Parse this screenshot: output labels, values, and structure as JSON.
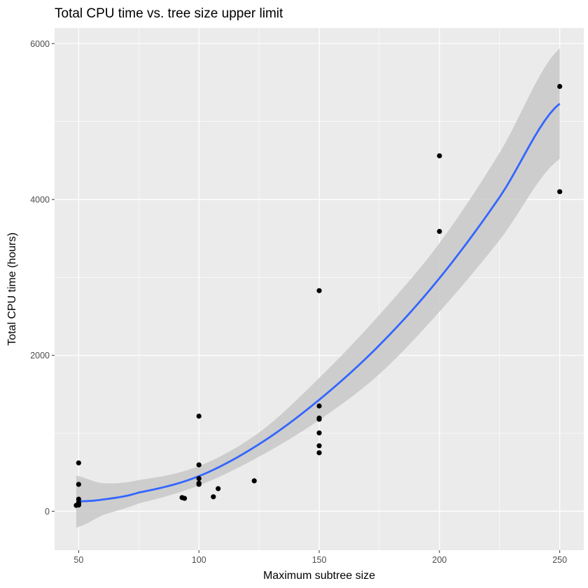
{
  "chart_data": {
    "type": "scatter",
    "title": "Total CPU time vs. tree size upper limit",
    "xlabel": "Maximum subtree size",
    "ylabel": "Total CPU time (hours)",
    "xlim": [
      40,
      260
    ],
    "ylim": [
      -500,
      6200
    ],
    "x_ticks": [
      50,
      100,
      150,
      200,
      250
    ],
    "x_minor_ticks": [
      75,
      125,
      175,
      225
    ],
    "y_ticks": [
      0,
      2000,
      4000,
      6000
    ],
    "y_minor_ticks": [
      1000,
      3000,
      5000
    ],
    "grid": true,
    "legend": "none",
    "colors": {
      "panel": "#ebebeb",
      "grid": "#ffffff",
      "points": "#000000",
      "fit_line": "#3366ff",
      "confidence_band": "#c8c8c8"
    },
    "points": [
      {
        "x": 49,
        "y": 75
      },
      {
        "x": 50,
        "y": 80
      },
      {
        "x": 50,
        "y": 95
      },
      {
        "x": 50,
        "y": 110
      },
      {
        "x": 50,
        "y": 155
      },
      {
        "x": 50,
        "y": 345
      },
      {
        "x": 50,
        "y": 620
      },
      {
        "x": 93,
        "y": 175
      },
      {
        "x": 94,
        "y": 165
      },
      {
        "x": 100,
        "y": 345
      },
      {
        "x": 100,
        "y": 360
      },
      {
        "x": 100,
        "y": 420
      },
      {
        "x": 100,
        "y": 595
      },
      {
        "x": 100,
        "y": 1220
      },
      {
        "x": 106,
        "y": 185
      },
      {
        "x": 108,
        "y": 290
      },
      {
        "x": 123,
        "y": 390
      },
      {
        "x": 150,
        "y": 750
      },
      {
        "x": 150,
        "y": 840
      },
      {
        "x": 150,
        "y": 1005
      },
      {
        "x": 150,
        "y": 1180
      },
      {
        "x": 150,
        "y": 1195
      },
      {
        "x": 150,
        "y": 1350
      },
      {
        "x": 150,
        "y": 2830
      },
      {
        "x": 200,
        "y": 3590
      },
      {
        "x": 200,
        "y": 4560
      },
      {
        "x": 250,
        "y": 4100
      },
      {
        "x": 250,
        "y": 5450
      }
    ],
    "fit": {
      "method": "quadratic smooth with confidence band",
      "x": [
        49,
        60,
        75,
        100,
        125,
        150,
        175,
        200,
        225,
        250
      ],
      "y": [
        125,
        150,
        240,
        450,
        860,
        1430,
        2130,
        2990,
        4030,
        5230
      ],
      "y_lower": [
        -210,
        -50,
        100,
        330,
        700,
        1170,
        1760,
        2560,
        3480,
        4520
      ],
      "y_upper": [
        455,
        360,
        400,
        580,
        1010,
        1710,
        2520,
        3440,
        4600,
        5940
      ]
    }
  }
}
